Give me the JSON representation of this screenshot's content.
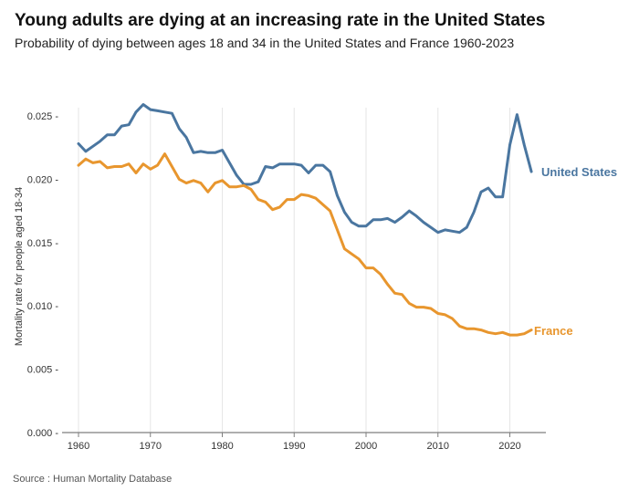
{
  "title": "Young adults are dying at an increasing rate in the United States",
  "subtitle": "Probability of dying between ages 18 and 34 in the United States and France 1960-2023",
  "source": "Source : Human Mortality Database",
  "colors": {
    "us": "#4a76a0",
    "france": "#e8962e",
    "grid": "#e6e6e6",
    "axis": "#7f7f7f"
  },
  "chart_data": {
    "type": "line",
    "title": "Young adults are dying at an increasing rate in the United States",
    "xlabel": "",
    "ylabel": "Mortality rate for people aged 18-34",
    "xlim": [
      1960,
      2023
    ],
    "ylim": [
      0,
      0.025
    ],
    "x_ticks": [
      1960,
      1970,
      1980,
      1990,
      2000,
      2010,
      2020
    ],
    "x_tick_labels": [
      "1960",
      "1970",
      "1980",
      "1990",
      "2000",
      "2010",
      "2020"
    ],
    "y_ticks": [
      0,
      0.005,
      0.01,
      0.015,
      0.02,
      0.025
    ],
    "y_tick_labels": [
      "0.000",
      "0.005",
      "0.010",
      "0.015",
      "0.020",
      "0.025"
    ],
    "grid": "vertical",
    "x": [
      1960,
      1961,
      1962,
      1963,
      1964,
      1965,
      1966,
      1967,
      1968,
      1969,
      1970,
      1971,
      1972,
      1973,
      1974,
      1975,
      1976,
      1977,
      1978,
      1979,
      1980,
      1981,
      1982,
      1983,
      1984,
      1985,
      1986,
      1987,
      1988,
      1989,
      1990,
      1991,
      1992,
      1993,
      1994,
      1995,
      1996,
      1997,
      1998,
      1999,
      2000,
      2001,
      2002,
      2003,
      2004,
      2005,
      2006,
      2007,
      2008,
      2009,
      2010,
      2011,
      2012,
      2013,
      2014,
      2015,
      2016,
      2017,
      2018,
      2019,
      2020,
      2021,
      2022,
      2023
    ],
    "series": [
      {
        "name": "United States",
        "label": "United States",
        "values": [
          0.0228,
          0.0222,
          0.0226,
          0.023,
          0.0235,
          0.0235,
          0.0242,
          0.0243,
          0.0253,
          0.0259,
          0.0255,
          0.0254,
          0.0253,
          0.0252,
          0.024,
          0.0233,
          0.0221,
          0.0222,
          0.0221,
          0.0221,
          0.0223,
          0.0213,
          0.0203,
          0.0196,
          0.0196,
          0.0198,
          0.021,
          0.0209,
          0.0212,
          0.0212,
          0.0212,
          0.0211,
          0.0205,
          0.0211,
          0.0211,
          0.0206,
          0.0187,
          0.0174,
          0.0166,
          0.0163,
          0.0163,
          0.0168,
          0.0168,
          0.0169,
          0.0166,
          0.017,
          0.0175,
          0.0171,
          0.0166,
          0.0162,
          0.0158,
          0.016,
          0.0159,
          0.0158,
          0.0162,
          0.0174,
          0.019,
          0.0193,
          0.0186,
          0.0186,
          0.0227,
          0.0251,
          0.0227,
          0.0206
        ]
      },
      {
        "name": "France",
        "label": "France",
        "values": [
          0.0211,
          0.0216,
          0.0213,
          0.0214,
          0.0209,
          0.021,
          0.021,
          0.0212,
          0.0205,
          0.0212,
          0.0208,
          0.0211,
          0.022,
          0.021,
          0.02,
          0.0197,
          0.0199,
          0.0197,
          0.019,
          0.0197,
          0.0199,
          0.0194,
          0.0194,
          0.0195,
          0.0192,
          0.0184,
          0.0182,
          0.0176,
          0.0178,
          0.0184,
          0.0184,
          0.0188,
          0.0187,
          0.0185,
          0.018,
          0.0175,
          0.016,
          0.0145,
          0.0141,
          0.0137,
          0.013,
          0.013,
          0.0125,
          0.0117,
          0.011,
          0.0109,
          0.0102,
          0.0099,
          0.0099,
          0.0098,
          0.0094,
          0.0093,
          0.009,
          0.0084,
          0.0082,
          0.0082,
          0.0081,
          0.0079,
          0.0078,
          0.0079,
          0.0077,
          0.0077,
          0.0078,
          0.0081
        ]
      }
    ]
  }
}
